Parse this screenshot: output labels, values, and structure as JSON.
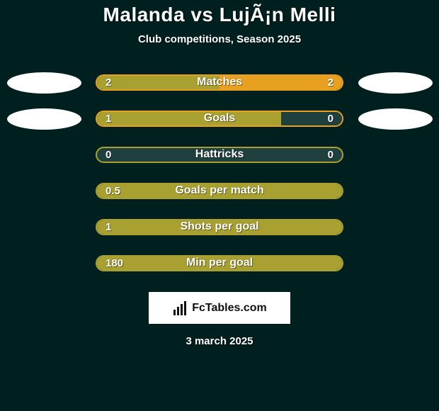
{
  "title": "Malanda vs LujÃ¡n Melli",
  "subtitle": "Club competitions, Season 2025",
  "date": "3 march 2025",
  "brand": "FcTables.com",
  "colors": {
    "background": "#002020",
    "left": "#a8a030",
    "right": "#e8a020",
    "track": "#204040",
    "border_left_only": "#a8a030",
    "border_mixed": "#e8a020"
  },
  "side_ovals": {
    "rows_with_ovals": [
      0,
      1
    ]
  },
  "stats": [
    {
      "label": "Matches",
      "left_val": "2",
      "right_val": "2",
      "left_pct": 50,
      "right_pct": 50,
      "border_color": "#e8a020"
    },
    {
      "label": "Goals",
      "left_val": "1",
      "right_val": "0",
      "left_pct": 75,
      "right_pct": 25,
      "border_color": "#e8a020",
      "right_is_track": true
    },
    {
      "label": "Hattricks",
      "left_val": "0",
      "right_val": "0",
      "left_pct": 0,
      "right_pct": 0,
      "border_color": "#a8a030",
      "track_only": true
    },
    {
      "label": "Goals per match",
      "left_val": "0.5",
      "right_val": "",
      "left_pct": 100,
      "right_pct": 0,
      "border_color": "#a8a030"
    },
    {
      "label": "Shots per goal",
      "left_val": "1",
      "right_val": "",
      "left_pct": 100,
      "right_pct": 0,
      "border_color": "#a8a030"
    },
    {
      "label": "Min per goal",
      "left_val": "180",
      "right_val": "",
      "left_pct": 100,
      "right_pct": 0,
      "border_color": "#a8a030"
    }
  ]
}
